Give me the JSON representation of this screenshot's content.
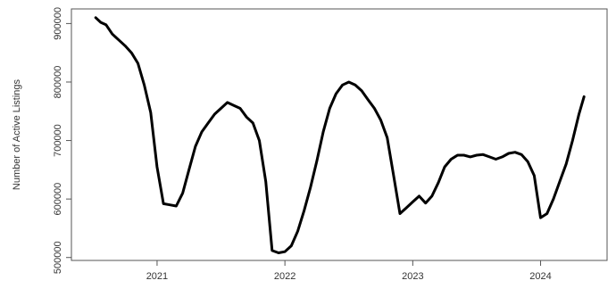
{
  "chart_data": {
    "type": "line",
    "title": "",
    "xlabel": "",
    "ylabel": "Number of Active Listings",
    "xlim": [
      2020.33,
      2024.52
    ],
    "ylim": [
      495000,
      925000
    ],
    "x_ticks": [
      2021,
      2022,
      2023,
      2024
    ],
    "x_tick_labels": [
      "2021",
      "2022",
      "2023",
      "2024"
    ],
    "y_ticks": [
      500000,
      600000,
      700000,
      800000,
      900000
    ],
    "y_tick_labels": [
      "500000",
      "600000",
      "700000",
      "800000",
      "900000"
    ],
    "grid": false,
    "legend": "none",
    "line_color": "#000000",
    "series": [
      {
        "x": [
          2020.52,
          2020.56,
          2020.6,
          2020.65,
          2020.7,
          2020.75,
          2020.8,
          2020.85,
          2020.9,
          2020.95,
          2021.0,
          2021.05,
          2021.1,
          2021.15,
          2021.2,
          2021.25,
          2021.3,
          2021.35,
          2021.4,
          2021.45,
          2021.5,
          2021.55,
          2021.6,
          2021.65,
          2021.7,
          2021.75,
          2021.8,
          2021.85,
          2021.9,
          2021.95,
          2022.0,
          2022.05,
          2022.1,
          2022.15,
          2022.2,
          2022.25,
          2022.3,
          2022.35,
          2022.4,
          2022.45,
          2022.5,
          2022.55,
          2022.6,
          2022.65,
          2022.7,
          2022.75,
          2022.8,
          2022.85,
          2022.9,
          2022.95,
          2023.0,
          2023.05,
          2023.1,
          2023.15,
          2023.2,
          2023.25,
          2023.3,
          2023.35,
          2023.4,
          2023.45,
          2023.5,
          2023.55,
          2023.6,
          2023.65,
          2023.7,
          2023.75,
          2023.8,
          2023.85,
          2023.9,
          2023.95,
          2024.0,
          2024.05,
          2024.1,
          2024.15,
          2024.2,
          2024.25,
          2024.3,
          2024.34
        ],
        "y": [
          910000,
          902000,
          898000,
          882000,
          872000,
          862000,
          850000,
          832000,
          795000,
          748000,
          655000,
          592000,
          590000,
          588000,
          610000,
          650000,
          690000,
          715000,
          730000,
          745000,
          755000,
          765000,
          760000,
          755000,
          740000,
          730000,
          700000,
          630000,
          512000,
          508000,
          510000,
          520000,
          545000,
          580000,
          620000,
          665000,
          715000,
          755000,
          780000,
          795000,
          800000,
          795000,
          785000,
          770000,
          755000,
          735000,
          705000,
          640000,
          575000,
          585000,
          595000,
          605000,
          593000,
          605000,
          628000,
          655000,
          668000,
          675000,
          675000,
          672000,
          675000,
          676000,
          672000,
          668000,
          672000,
          678000,
          680000,
          676000,
          664000,
          640000,
          568000,
          575000,
          600000,
          630000,
          660000,
          700000,
          745000,
          775000
        ]
      }
    ]
  }
}
